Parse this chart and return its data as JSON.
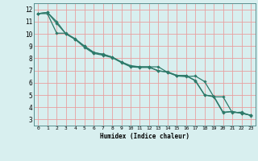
{
  "title": "",
  "xlabel": "Humidex (Indice chaleur)",
  "background_color": "#d8efef",
  "grid_color": "#e8a0a0",
  "line_color": "#2d7a6a",
  "xlim": [
    -0.5,
    23.5
  ],
  "ylim": [
    2.5,
    12.5
  ],
  "yticks": [
    3,
    4,
    5,
    6,
    7,
    8,
    9,
    10,
    11,
    12
  ],
  "xticks": [
    0,
    1,
    2,
    3,
    4,
    5,
    6,
    7,
    8,
    9,
    10,
    11,
    12,
    13,
    14,
    15,
    16,
    17,
    18,
    19,
    20,
    21,
    22,
    23
  ],
  "series": [
    {
      "x": [
        0,
        1,
        2,
        3,
        4,
        5,
        6,
        7,
        8,
        9,
        10,
        11,
        12,
        13,
        14,
        15,
        16,
        17,
        18,
        19,
        20,
        21,
        22,
        23
      ],
      "y": [
        11.65,
        11.75,
        11.0,
        10.0,
        9.55,
        9.0,
        8.5,
        8.3,
        8.1,
        7.7,
        7.35,
        7.3,
        7.3,
        7.3,
        6.85,
        6.6,
        6.55,
        6.2,
        5.0,
        4.85,
        3.55,
        3.65,
        3.5,
        3.35
      ]
    },
    {
      "x": [
        0,
        1,
        2,
        3,
        4,
        5,
        6,
        7,
        8,
        9,
        10,
        11,
        12,
        13,
        14,
        15,
        16,
        17,
        18,
        19,
        20,
        21,
        22,
        23
      ],
      "y": [
        11.65,
        11.75,
        10.85,
        10.0,
        9.55,
        8.9,
        8.4,
        8.25,
        8.05,
        7.65,
        7.3,
        7.25,
        7.25,
        7.0,
        6.85,
        6.55,
        6.5,
        6.55,
        6.1,
        4.85,
        4.85,
        3.55,
        3.6,
        3.3
      ]
    },
    {
      "x": [
        0,
        1,
        2,
        3,
        4,
        5,
        6,
        7,
        8,
        9,
        10,
        11,
        12,
        13,
        14,
        15,
        16,
        17,
        18,
        19,
        20,
        21,
        22,
        23
      ],
      "y": [
        11.65,
        11.65,
        10.05,
        10.05,
        9.6,
        9.0,
        8.45,
        8.35,
        8.1,
        7.7,
        7.4,
        7.3,
        7.3,
        6.95,
        6.9,
        6.6,
        6.6,
        6.15,
        5.0,
        4.9,
        3.6,
        3.65,
        3.5,
        3.35
      ]
    }
  ]
}
